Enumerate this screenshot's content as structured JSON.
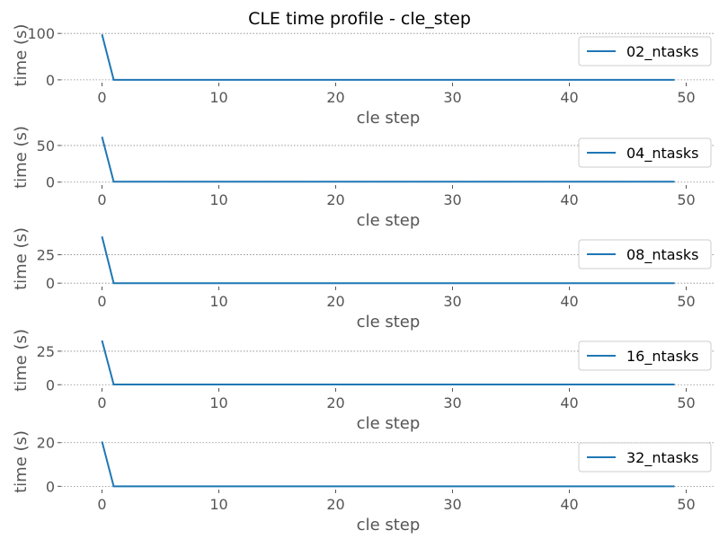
{
  "title": "CLE time profile - cle_step",
  "line_color": "#1f77b4",
  "chart_data": [
    {
      "type": "line",
      "xlabel": "cle step",
      "ylabel": "time (s)",
      "xlim": [
        -3.5,
        52.5
      ],
      "ylim": [
        -6,
        112
      ],
      "yticks": [
        0,
        100
      ],
      "xticks": [
        0,
        10,
        20,
        30,
        40,
        50
      ],
      "grid": "y-dotted",
      "legend_position": "top-right",
      "series": [
        {
          "name": "02_ntasks",
          "x_start": 0,
          "x_end": 49,
          "values_head": [
            98,
            0
          ],
          "tail_value": 0
        }
      ]
    },
    {
      "type": "line",
      "xlabel": "cle step",
      "ylabel": "time (s)",
      "xlim": [
        -3.5,
        52.5
      ],
      "ylim": [
        -4,
        72
      ],
      "yticks": [
        0,
        50
      ],
      "xticks": [
        0,
        10,
        20,
        30,
        40,
        50
      ],
      "grid": "y-dotted",
      "legend_position": "top-right",
      "series": [
        {
          "name": "04_ntasks",
          "x_start": 0,
          "x_end": 49,
          "values_head": [
            62,
            0.5
          ],
          "tail_value": 0.5
        }
      ]
    },
    {
      "type": "line",
      "xlabel": "cle step",
      "ylabel": "time (s)",
      "xlim": [
        -3.5,
        52.5
      ],
      "ylim": [
        -3,
        46
      ],
      "yticks": [
        0,
        25
      ],
      "xticks": [
        0,
        10,
        20,
        30,
        40,
        50
      ],
      "grid": "y-dotted",
      "legend_position": "top-right",
      "series": [
        {
          "name": "08_ntasks",
          "x_start": 0,
          "x_end": 49,
          "values_head": [
            41,
            0
          ],
          "tail_value": 0
        }
      ]
    },
    {
      "type": "line",
      "xlabel": "cle step",
      "ylabel": "time (s)",
      "xlim": [
        -3.5,
        52.5
      ],
      "ylim": [
        -2.5,
        39
      ],
      "yticks": [
        0,
        25
      ],
      "xticks": [
        0,
        10,
        20,
        30,
        40,
        50
      ],
      "grid": "y-dotted",
      "legend_position": "top-right",
      "series": [
        {
          "name": "16_ntasks",
          "x_start": 0,
          "x_end": 49,
          "values_head": [
            33,
            0.2
          ],
          "tail_value": 0.2
        }
      ]
    },
    {
      "type": "line",
      "xlabel": "cle step",
      "ylabel": "time (s)",
      "xlim": [
        -3.5,
        52.5
      ],
      "ylim": [
        -1.5,
        24
      ],
      "yticks": [
        0,
        20
      ],
      "xticks": [
        0,
        10,
        20,
        30,
        40,
        50
      ],
      "grid": "y-dotted",
      "legend_position": "top-right",
      "series": [
        {
          "name": "32_ntasks",
          "x_start": 0,
          "x_end": 49,
          "values_head": [
            20.5,
            0
          ],
          "tail_value": 0
        }
      ]
    }
  ]
}
